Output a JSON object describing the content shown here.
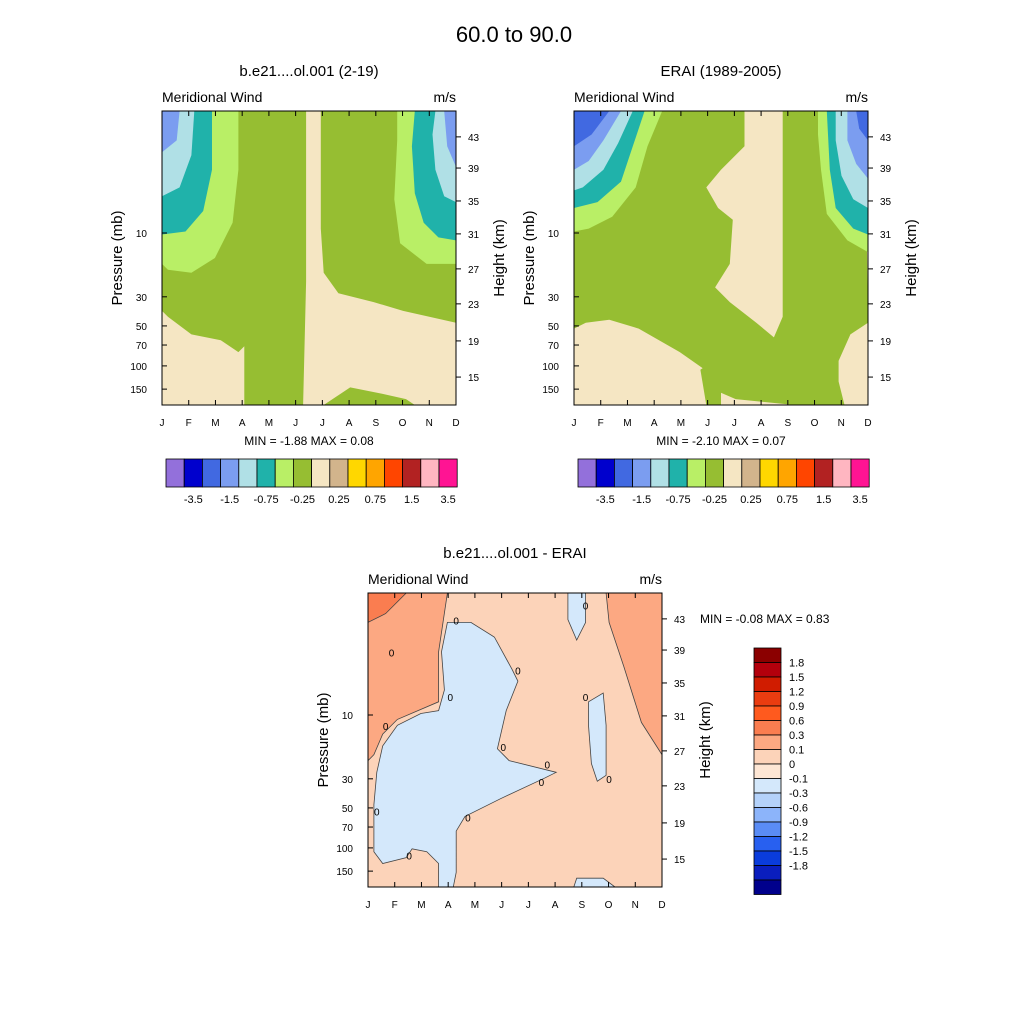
{
  "page_title": "60.0 to  90.0",
  "chart_data": [
    {
      "type": "heatmap",
      "id": "model",
      "title": "b.e21....ol.001 (2-19)",
      "left_label": "Meridional Wind",
      "right_label": "m/s",
      "ylabel": "Pressure (mb)",
      "y2label": "Height (km)",
      "x_ticks": [
        "J",
        "F",
        "M",
        "A",
        "M",
        "J",
        "J",
        "A",
        "S",
        "O",
        "N",
        "D"
      ],
      "y_ticks": [
        "10",
        "30",
        "50",
        "70",
        "100",
        "150"
      ],
      "y2_ticks": [
        "43",
        "39",
        "35",
        "31",
        "27",
        "23",
        "19",
        "15"
      ],
      "min_max_text": "MIN =  -1.88  MAX =   0.08",
      "min": -1.88,
      "max": 0.08,
      "regions": [
        {
          "level": -1.5,
          "months": [
            0,
            1
          ],
          "levels": "top"
        },
        {
          "level": -0.75,
          "months": [
            0,
            1,
            10,
            11
          ],
          "levels": "upper"
        },
        {
          "level": -0.5,
          "months": [
            0,
            1,
            2,
            10,
            11
          ],
          "levels": "upper"
        },
        {
          "level": -0.25,
          "months": [
            0,
            1,
            2,
            3,
            4,
            5,
            8,
            9,
            10,
            11
          ],
          "levels": "upper-middle"
        },
        {
          "level": 0.0,
          "months": [
            5,
            6,
            7
          ],
          "levels": "all"
        }
      ],
      "colorbar": {
        "labels": [
          "-3.5",
          "-1.5",
          "-0.75",
          "-0.25",
          "0.25",
          "0.75",
          "1.5",
          "3.5"
        ],
        "colors": [
          "#9370db",
          "#0000cd",
          "#4169e1",
          "#7b9df0",
          "#b0e0e6",
          "#20b2aa",
          "#b9ef66",
          "#96be32",
          "#f5e6c3",
          "#d2b48c",
          "#ffd700",
          "#ffa500",
          "#ff4500",
          "#b22222",
          "#ffb6c1",
          "#ff1493"
        ]
      }
    },
    {
      "type": "heatmap",
      "id": "obs",
      "title": "ERAI (1989-2005)",
      "left_label": "Meridional Wind",
      "right_label": "m/s",
      "ylabel": "Pressure (mb)",
      "y2label": "Height (km)",
      "x_ticks": [
        "J",
        "F",
        "M",
        "A",
        "M",
        "J",
        "J",
        "A",
        "S",
        "O",
        "N",
        "D"
      ],
      "y_ticks": [
        "10",
        "30",
        "50",
        "70",
        "100",
        "150"
      ],
      "y2_ticks": [
        "43",
        "39",
        "35",
        "31",
        "27",
        "23",
        "19",
        "15"
      ],
      "min_max_text": "MIN =  -2.10  MAX =   0.07",
      "min": -2.1,
      "max": 0.07,
      "colorbar": {
        "labels": [
          "-3.5",
          "-1.5",
          "-0.75",
          "-0.25",
          "0.25",
          "0.75",
          "1.5",
          "3.5"
        ],
        "colors": [
          "#9370db",
          "#0000cd",
          "#4169e1",
          "#7b9df0",
          "#b0e0e6",
          "#20b2aa",
          "#b9ef66",
          "#96be32",
          "#f5e6c3",
          "#d2b48c",
          "#ffd700",
          "#ffa500",
          "#ff4500",
          "#b22222",
          "#ffb6c1",
          "#ff1493"
        ]
      }
    },
    {
      "type": "heatmap",
      "id": "diff",
      "title": "b.e21....ol.001 - ERAI",
      "left_label": "Meridional Wind",
      "right_label": "m/s",
      "ylabel": "Pressure (mb)",
      "y2label": "Height (km)",
      "x_ticks": [
        "J",
        "F",
        "M",
        "A",
        "M",
        "J",
        "J",
        "A",
        "S",
        "O",
        "N",
        "D"
      ],
      "y_ticks": [
        "10",
        "30",
        "50",
        "70",
        "100",
        "150"
      ],
      "y2_ticks": [
        "43",
        "39",
        "35",
        "31",
        "27",
        "23",
        "19",
        "15"
      ],
      "min_max_text": "MIN =  -0.08  MAX =   0.83",
      "min": -0.08,
      "max": 0.83,
      "contour_labels": [
        "0",
        "0",
        "0",
        "0",
        "0",
        "0",
        "0",
        "0",
        "0",
        "0",
        "0",
        "0",
        "0",
        "0"
      ],
      "colorbar": {
        "labels": [
          "1.8",
          "1.5",
          "1.2",
          "0.9",
          "0.6",
          "0.3",
          "0.1",
          "0",
          "-0.1",
          "-0.3",
          "-0.6",
          "-0.9",
          "-1.2",
          "-1.5",
          "-1.8"
        ],
        "colors": [
          "#8b0000",
          "#b3000c",
          "#d01c00",
          "#ea3c10",
          "#ff5a1e",
          "#fa7d50",
          "#fca882",
          "#fcd3b9",
          "#fde6d4",
          "#d4e8fb",
          "#b4d2fa",
          "#8cb4fa",
          "#5a8cf5",
          "#2860f0",
          "#0a3cdc",
          "#0a1ebe",
          "#00008c"
        ]
      }
    }
  ]
}
